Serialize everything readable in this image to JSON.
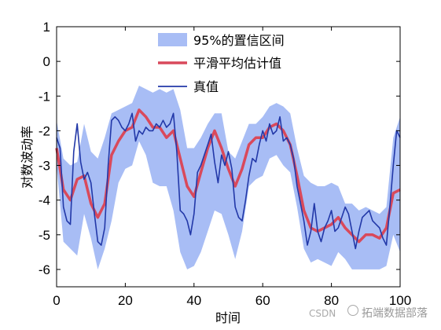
{
  "chart_data": {
    "type": "line",
    "title": "",
    "xlabel": "时间",
    "ylabel": "对数波动率",
    "xlim": [
      0,
      100
    ],
    "ylim": [
      -6.5,
      1
    ],
    "xticks": [
      0,
      20,
      40,
      60,
      80,
      100
    ],
    "yticks": [
      1,
      0,
      -1,
      -2,
      -3,
      -4,
      -5,
      -6
    ],
    "grid": false,
    "legend_position": "top-center",
    "colors": {
      "band": "#a8bdf5",
      "smooth": "#d9495b",
      "truth": "#2238a8"
    },
    "series": [
      {
        "name": "95%的置信区间",
        "kind": "band",
        "x": [
          0,
          2,
          4,
          6,
          8,
          10,
          12,
          14,
          16,
          18,
          20,
          22,
          24,
          26,
          28,
          30,
          32,
          34,
          36,
          38,
          40,
          42,
          44,
          46,
          48,
          50,
          52,
          54,
          56,
          58,
          60,
          62,
          64,
          66,
          68,
          70,
          72,
          74,
          76,
          78,
          80,
          82,
          84,
          86,
          88,
          90,
          92,
          94,
          96,
          98,
          100
        ],
        "upper": [
          -1.7,
          -2.8,
          -3.0,
          -2.9,
          -1.8,
          -2.6,
          -2.8,
          -2.2,
          -1.5,
          -1.4,
          -1.3,
          -1.2,
          -0.7,
          -0.8,
          -0.9,
          -0.8,
          -0.9,
          -0.8,
          -1.4,
          -2.5,
          -2.5,
          -2.2,
          -1.8,
          -1.5,
          -1.5,
          -2.6,
          -2.8,
          -2.3,
          -1.8,
          -1.8,
          -1.6,
          -1.3,
          -1.2,
          -1.3,
          -1.5,
          -2.5,
          -3.3,
          -3.5,
          -3.6,
          -3.6,
          -3.5,
          -3.6,
          -4.1,
          -4.1,
          -4.3,
          -4.2,
          -4.3,
          -4.4,
          -4.2,
          -2.2,
          -1.6
        ],
        "lower": [
          -3.0,
          -5.2,
          -5.4,
          -5.6,
          -4.4,
          -5.1,
          -6.0,
          -5.4,
          -4.6,
          -3.5,
          -3.1,
          -3.0,
          -2.3,
          -2.7,
          -3.5,
          -3.6,
          -3.6,
          -4.3,
          -5.5,
          -6.0,
          -5.9,
          -5.5,
          -4.9,
          -4.3,
          -4.4,
          -5.0,
          -5.7,
          -4.9,
          -3.6,
          -3.4,
          -3.3,
          -2.8,
          -2.7,
          -3.0,
          -3.2,
          -4.2,
          -5.4,
          -5.8,
          -5.7,
          -5.8,
          -5.9,
          -5.5,
          -5.7,
          -6.0,
          -6.0,
          -6.0,
          -6.0,
          -6.0,
          -5.9,
          -5.0,
          -5.5
        ]
      },
      {
        "name": "平滑平均估计值",
        "kind": "line",
        "x": [
          0,
          2,
          4,
          6,
          8,
          10,
          12,
          14,
          16,
          18,
          20,
          22,
          24,
          26,
          28,
          30,
          32,
          34,
          36,
          38,
          40,
          42,
          44,
          46,
          48,
          50,
          52,
          54,
          56,
          58,
          60,
          62,
          64,
          66,
          68,
          70,
          72,
          74,
          76,
          78,
          80,
          82,
          84,
          86,
          88,
          90,
          92,
          94,
          96,
          98,
          100
        ],
        "values": [
          -2.5,
          -3.7,
          -4.0,
          -3.4,
          -3.3,
          -4.1,
          -4.5,
          -4.1,
          -2.7,
          -2.3,
          -2.0,
          -1.9,
          -1.4,
          -1.6,
          -1.9,
          -1.9,
          -2.2,
          -2.0,
          -2.8,
          -3.6,
          -3.9,
          -3.2,
          -2.5,
          -2.0,
          -2.5,
          -3.1,
          -3.6,
          -3.1,
          -2.4,
          -2.2,
          -2.2,
          -1.9,
          -1.8,
          -2.0,
          -2.4,
          -3.3,
          -4.3,
          -4.8,
          -4.9,
          -4.8,
          -4.7,
          -4.5,
          -4.8,
          -5.0,
          -5.2,
          -5.0,
          -5.0,
          -5.1,
          -4.8,
          -3.8,
          -3.7
        ]
      },
      {
        "name": "真值",
        "kind": "line",
        "x": [
          0,
          1,
          2,
          3,
          4,
          5,
          6,
          7,
          8,
          9,
          10,
          11,
          12,
          13,
          14,
          15,
          16,
          17,
          18,
          19,
          20,
          21,
          22,
          23,
          24,
          25,
          26,
          27,
          28,
          29,
          30,
          31,
          32,
          33,
          34,
          35,
          36,
          37,
          38,
          39,
          40,
          41,
          42,
          43,
          44,
          45,
          46,
          47,
          48,
          49,
          50,
          51,
          52,
          53,
          54,
          55,
          56,
          57,
          58,
          59,
          60,
          61,
          62,
          63,
          64,
          65,
          66,
          67,
          68,
          69,
          70,
          71,
          72,
          73,
          74,
          75,
          76,
          77,
          78,
          79,
          80,
          81,
          82,
          83,
          84,
          85,
          86,
          87,
          88,
          89,
          90,
          91,
          92,
          93,
          94,
          95,
          96,
          97,
          98,
          99,
          100
        ],
        "values": [
          -2.2,
          -2.5,
          -4.2,
          -4.6,
          -4.7,
          -2.6,
          -1.8,
          -2.9,
          -3.4,
          -3.2,
          -3.5,
          -4.4,
          -5.2,
          -5.3,
          -4.8,
          -3.0,
          -1.7,
          -1.6,
          -1.7,
          -1.9,
          -2.0,
          -1.8,
          -1.5,
          -2.3,
          -2.0,
          -2.1,
          -1.9,
          -2.0,
          -2.0,
          -1.8,
          -1.9,
          -1.7,
          -1.9,
          -1.8,
          -1.5,
          -2.6,
          -4.3,
          -4.4,
          -4.6,
          -5.0,
          -4.4,
          -3.2,
          -3.0,
          -2.7,
          -2.4,
          -2.1,
          -2.9,
          -3.5,
          -2.7,
          -3.0,
          -2.6,
          -3.1,
          -4.2,
          -4.5,
          -4.6,
          -4.0,
          -3.3,
          -2.8,
          -2.9,
          -2.4,
          -2.0,
          -2.3,
          -1.8,
          -2.1,
          -2.0,
          -1.6,
          -2.3,
          -2.2,
          -2.4,
          -2.8,
          -3.6,
          -4.1,
          -4.6,
          -5.3,
          -4.9,
          -4.1,
          -4.9,
          -5.2,
          -4.8,
          -4.6,
          -4.3,
          -4.9,
          -4.8,
          -4.5,
          -4.2,
          -4.4,
          -4.9,
          -5.4,
          -4.9,
          -4.5,
          -4.4,
          -4.3,
          -4.6,
          -4.7,
          -4.8,
          -5.1,
          -5.3,
          -4.2,
          -3.0,
          -2.0,
          -2.2
        ]
      }
    ]
  },
  "watermark": {
    "left": "CSDN",
    "right": "拓端数据部落"
  }
}
